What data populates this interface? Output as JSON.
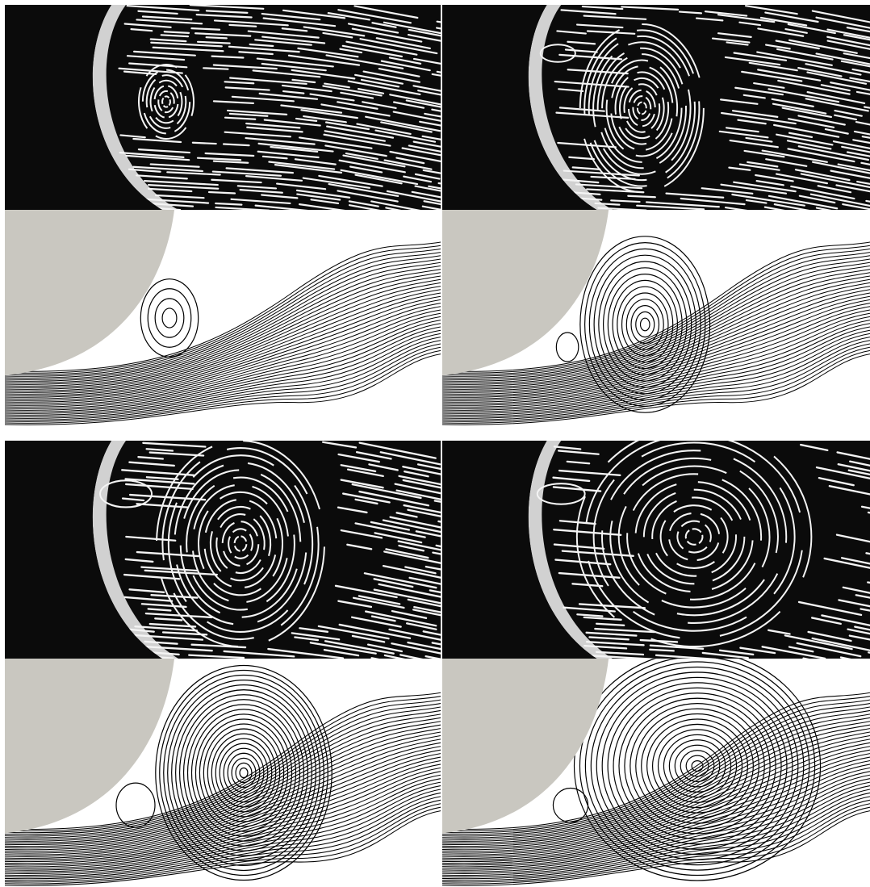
{
  "figure": {
    "description_note": "",
    "colors": {
      "photo_background": "#0b0b0b",
      "photo_streak": "#f4f4f4",
      "cylinder_gray": "#c9c7c0",
      "streamline": "#000000",
      "sim_background": "#ffffff"
    },
    "panels": [
      {
        "id": "p1",
        "kind": "photo",
        "stage": 1
      },
      {
        "id": "p2",
        "kind": "photo",
        "stage": 2
      },
      {
        "id": "p3",
        "kind": "simulation",
        "stage": 1
      },
      {
        "id": "p4",
        "kind": "simulation",
        "stage": 2
      },
      {
        "id": "p5",
        "kind": "photo",
        "stage": 3
      },
      {
        "id": "p6",
        "kind": "photo",
        "stage": 4
      },
      {
        "id": "p7",
        "kind": "simulation",
        "stage": 3
      },
      {
        "id": "p8",
        "kind": "simulation",
        "stage": 4
      }
    ]
  }
}
